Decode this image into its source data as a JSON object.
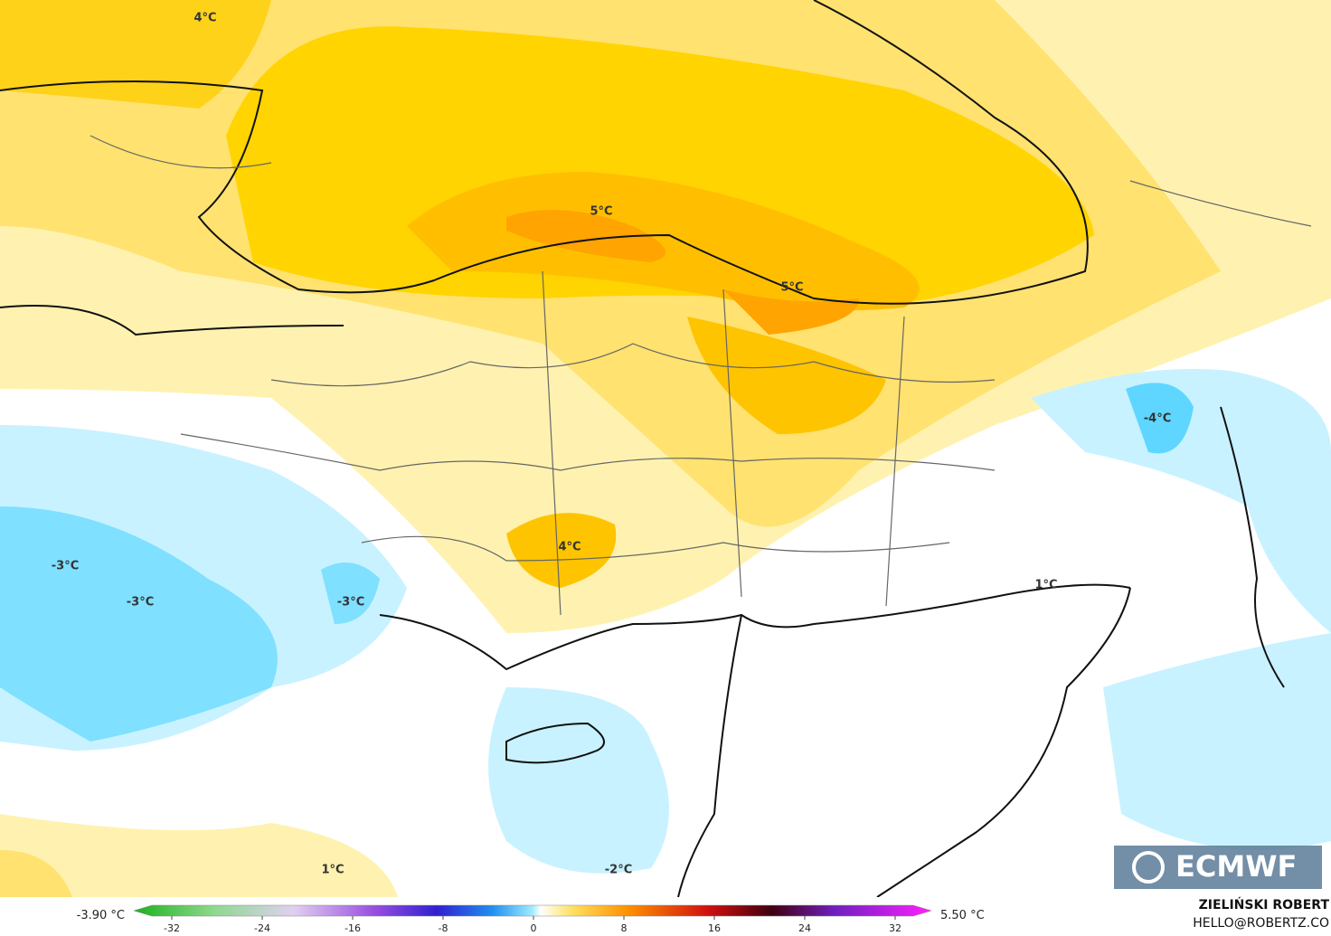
{
  "map": {
    "labels": [
      "4°C",
      "5°C",
      "5°C",
      "-4°C",
      "4°C",
      "-3°C",
      "-3°C",
      "-3°C",
      "1°C",
      "1°C",
      "-2°C"
    ]
  },
  "legend": {
    "min_label": "-3.90 °C",
    "max_label": "5.50 °C",
    "ticks": [
      -32,
      -24,
      -16,
      -8,
      0,
      8,
      16,
      24,
      32
    ]
  },
  "credits": {
    "logo": "ECMWF",
    "author": "ZIELIŃSKI ROBERT",
    "email": "HELLO@ROBERTZ.CO"
  }
}
